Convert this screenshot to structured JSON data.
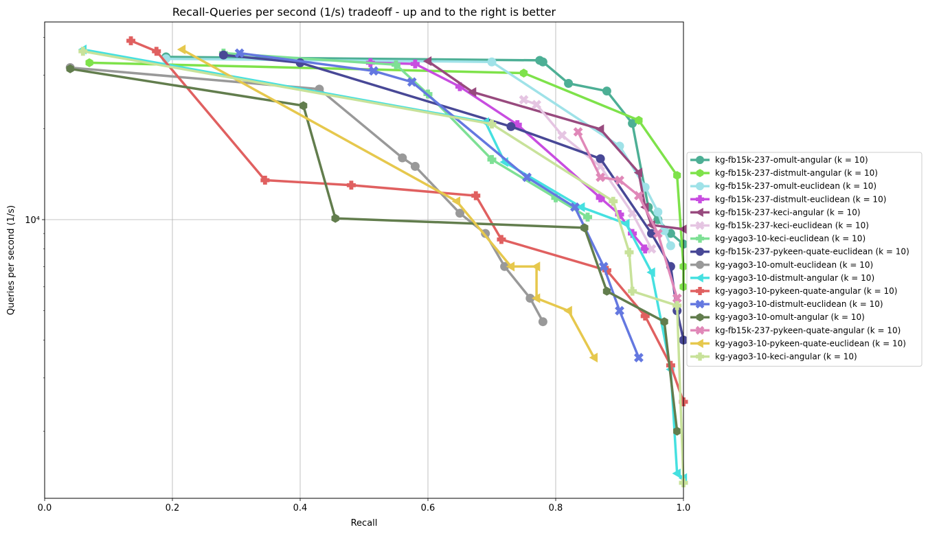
{
  "chart_data": {
    "type": "line",
    "title": "Recall-Queries per second (1/s) tradeoff - up and to the right is better",
    "xlabel": "Recall",
    "ylabel": "Queries per second (1/s)",
    "xlim": [
      0.0,
      1.0
    ],
    "ylim": [
      1200,
      45000
    ],
    "yscale": "log",
    "xticks": [
      0.0,
      0.2,
      0.4,
      0.6,
      0.8,
      1.0
    ],
    "xtick_labels": [
      "0.0",
      "0.2",
      "0.4",
      "0.6",
      "0.8",
      "1.0"
    ],
    "yticks": [
      10000
    ],
    "ytick_labels": [
      "10⁴"
    ],
    "yminor_ticks": [
      2000,
      3000,
      4000,
      5000,
      6000,
      7000,
      8000,
      9000,
      20000,
      30000,
      40000
    ],
    "grid": true,
    "legend_position": "right",
    "series": [
      {
        "name": "kg-fb15k-237-omult-angular (k = 10)",
        "color": "#4daf95",
        "marker": "circle",
        "x": [
          0.19,
          0.775,
          0.78,
          0.82,
          0.88,
          0.92,
          0.945,
          0.96,
          0.98,
          1.0
        ],
        "y": [
          34500,
          33600,
          33200,
          28200,
          26600,
          20800,
          11000,
          10000,
          9000,
          8300
        ]
      },
      {
        "name": "kg-fb15k-237-distmult-angular (k = 10)",
        "color": "#7ee24a",
        "marker": "hexagon",
        "x": [
          0.07,
          0.75,
          0.93,
          0.99,
          1.0,
          1.0
        ],
        "y": [
          33000,
          30500,
          21300,
          14000,
          7000,
          6000
        ]
      },
      {
        "name": "kg-fb15k-237-omult-euclidean (k = 10)",
        "color": "#9fe2e8",
        "marker": "circle",
        "x": [
          0.19,
          0.7,
          0.9,
          0.94,
          0.96,
          0.97,
          0.98
        ],
        "y": [
          34000,
          33200,
          17500,
          12800,
          10600,
          9200,
          8200
        ]
      },
      {
        "name": "kg-fb15k-237-distmult-euclidean (k = 10)",
        "color": "#c84de0",
        "marker": "plus",
        "x": [
          0.51,
          0.58,
          0.65,
          0.74,
          0.87,
          0.9,
          0.92,
          0.94
        ],
        "y": [
          33000,
          32700,
          27500,
          20600,
          11800,
          10400,
          9000,
          8000
        ]
      },
      {
        "name": "kg-fb15k-237-keci-angular (k = 10)",
        "color": "#984a7e",
        "marker": "triangle-left",
        "x": [
          0.6,
          0.67,
          0.87,
          0.93,
          0.94,
          0.95,
          1.0
        ],
        "y": [
          33400,
          26400,
          19900,
          14300,
          11000,
          9600,
          9300
        ]
      },
      {
        "name": "kg-fb15k-237-keci-euclidean (k = 10)",
        "color": "#e5c5e2",
        "marker": "x",
        "x": [
          0.75,
          0.77,
          0.81,
          0.87,
          0.92,
          0.95
        ],
        "y": [
          24900,
          24000,
          19000,
          15000,
          10500,
          8000
        ]
      },
      {
        "name": "kg-yago3-10-keci-euclidean (k = 10)",
        "color": "#7ee095",
        "marker": "plus",
        "x": [
          0.28,
          0.55,
          0.6,
          0.7,
          0.8,
          0.85
        ],
        "y": [
          35500,
          32500,
          26000,
          15800,
          11800,
          10200
        ]
      },
      {
        "name": "kg-fb15k-237-pykeen-quate-euclidean (k = 10)",
        "color": "#484896",
        "marker": "circle",
        "x": [
          0.28,
          0.4,
          0.73,
          0.87,
          0.95,
          0.98,
          0.99,
          1.0
        ],
        "y": [
          35000,
          33000,
          20300,
          15900,
          9000,
          7000,
          5000,
          4000
        ]
      },
      {
        "name": "kg-yago3-10-omult-euclidean (k = 10)",
        "color": "#999999",
        "marker": "circle",
        "x": [
          0.04,
          0.43,
          0.56,
          0.58,
          0.65,
          0.69,
          0.72,
          0.76,
          0.78
        ],
        "y": [
          31800,
          27000,
          16000,
          15000,
          10500,
          9000,
          7000,
          5500,
          4600
        ]
      },
      {
        "name": "kg-yago3-10-distmult-angular (k = 10)",
        "color": "#45e0e0",
        "marker": "triangle-left",
        "x": [
          0.06,
          0.69,
          0.72,
          0.84,
          0.91,
          0.95,
          0.98,
          0.99,
          1.0
        ],
        "y": [
          36500,
          21000,
          15500,
          11000,
          9700,
          6700,
          3200,
          1450,
          1400
        ]
      },
      {
        "name": "kg-yago3-10-pykeen-quate-angular (k = 10)",
        "color": "#e06060",
        "marker": "plus",
        "x": [
          0.135,
          0.175,
          0.345,
          0.48,
          0.675,
          0.715,
          0.88,
          0.94,
          0.98,
          1.0
        ],
        "y": [
          39000,
          36000,
          13500,
          13000,
          12000,
          8600,
          6800,
          4800,
          3300,
          2500
        ]
      },
      {
        "name": "kg-yago3-10-distmult-euclidean (k = 10)",
        "color": "#6478e0",
        "marker": "x",
        "x": [
          0.305,
          0.515,
          0.575,
          0.755,
          0.83,
          0.875,
          0.9,
          0.93
        ],
        "y": [
          35500,
          31000,
          28500,
          13800,
          11000,
          7000,
          5000,
          3500
        ]
      },
      {
        "name": "kg-yago3-10-omult-angular (k = 10)",
        "color": "#627d4d",
        "marker": "hexagon",
        "x": [
          0.04,
          0.405,
          0.455,
          0.845,
          0.88,
          0.97,
          0.99
        ],
        "y": [
          31500,
          23800,
          10100,
          9400,
          5800,
          4600,
          2000
        ]
      },
      {
        "name": "kg-fb15k-237-pykeen-quate-angular (k = 10)",
        "color": "#e088b8",
        "marker": "x",
        "x": [
          0.835,
          0.87,
          0.9,
          0.93,
          0.96,
          0.99
        ],
        "y": [
          19500,
          13800,
          13500,
          12000,
          9000,
          5500
        ]
      },
      {
        "name": "kg-yago3-10-pykeen-quate-euclidean (k = 10)",
        "color": "#e6c84d",
        "marker": "triangle-left",
        "x": [
          0.215,
          0.645,
          0.73,
          0.77,
          0.77,
          0.82,
          0.86
        ],
        "y": [
          36500,
          11500,
          7000,
          7000,
          5500,
          5000,
          3500
        ]
      },
      {
        "name": "kg-yago3-10-keci-angular (k = 10)",
        "color": "#c8e29a",
        "marker": "plus",
        "x": [
          0.06,
          0.7,
          0.89,
          0.915,
          0.92,
          0.99,
          1.0
        ],
        "y": [
          36000,
          20700,
          11500,
          7800,
          5800,
          5200,
          1350
        ]
      }
    ]
  }
}
